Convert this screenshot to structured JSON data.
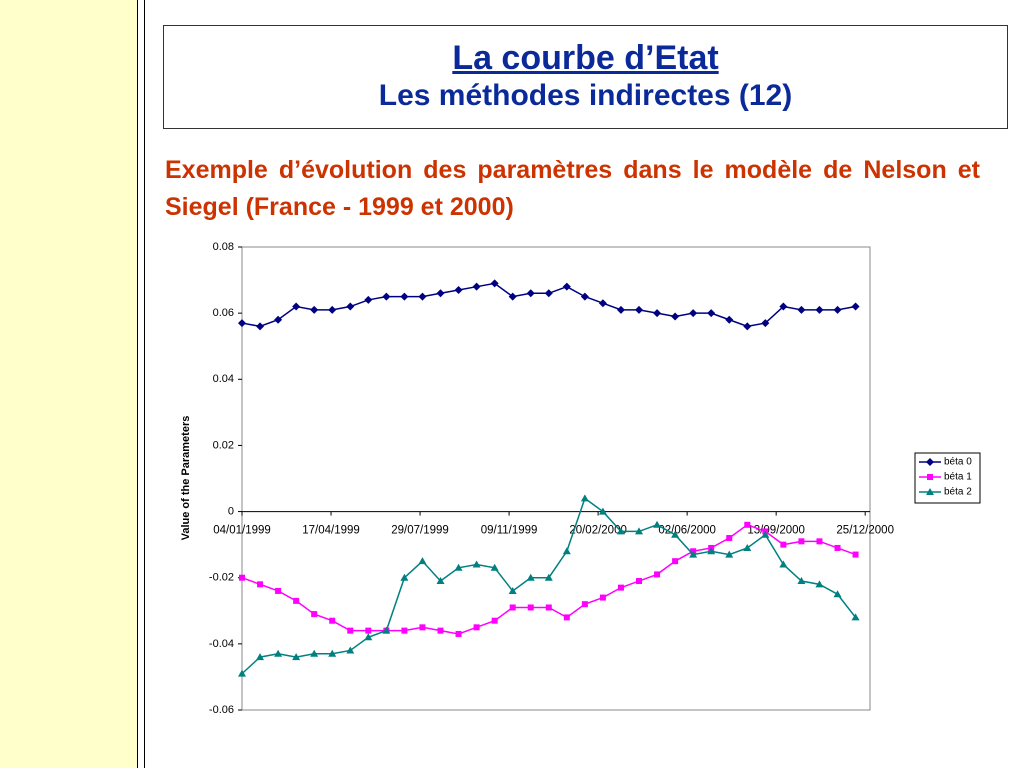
{
  "header": {
    "title": "La courbe d’Etat",
    "subtitle": "Les méthodes indirectes (12)"
  },
  "text": "Exemple d’évolution des paramètres dans le modèle de Nelson et Siegel (France - 1999 et 2000)",
  "chart_data": {
    "type": "line",
    "y_label": "Value of the Parameters",
    "x": [
      0,
      15,
      30,
      45,
      60,
      75,
      90,
      105,
      120,
      135,
      150,
      165,
      180,
      195,
      210,
      225,
      240,
      255,
      270,
      285,
      300,
      315,
      330,
      345,
      360,
      375,
      390,
      405,
      420,
      435,
      450,
      465,
      480,
      495,
      510
    ],
    "xlim": [
      0,
      522
    ],
    "xticks": [
      {
        "value": 0,
        "label": "04/01/1999"
      },
      {
        "value": 74,
        "label": "17/04/1999"
      },
      {
        "value": 148,
        "label": "29/07/1999"
      },
      {
        "value": 222,
        "label": "09/11/1999"
      },
      {
        "value": 296,
        "label": "20/02/2000"
      },
      {
        "value": 370,
        "label": "02/06/2000"
      },
      {
        "value": 444,
        "label": "13/09/2000"
      },
      {
        "value": 518,
        "label": "25/12/2000"
      }
    ],
    "ylim": [
      -0.06,
      0.08
    ],
    "yticks": [
      -0.06,
      -0.04,
      -0.02,
      0,
      0.02,
      0.04,
      0.06,
      0.08
    ],
    "grid": false,
    "legend": "right",
    "series": [
      {
        "name": "béta 0",
        "color": "#000080",
        "marker": "diamond",
        "values": [
          0.057,
          0.056,
          0.058,
          0.062,
          0.061,
          0.061,
          0.062,
          0.064,
          0.065,
          0.065,
          0.065,
          0.066,
          0.067,
          0.068,
          0.069,
          0.065,
          0.066,
          0.066,
          0.068,
          0.065,
          0.063,
          0.061,
          0.061,
          0.06,
          0.059,
          0.06,
          0.06,
          0.058,
          0.056,
          0.057,
          0.062,
          0.061,
          0.061,
          0.061,
          0.062
        ]
      },
      {
        "name": "béta 1",
        "color": "#ff00ff",
        "marker": "square",
        "values": [
          -0.02,
          -0.022,
          -0.024,
          -0.027,
          -0.031,
          -0.033,
          -0.036,
          -0.036,
          -0.036,
          -0.036,
          -0.035,
          -0.036,
          -0.037,
          -0.035,
          -0.033,
          -0.029,
          -0.029,
          -0.029,
          -0.032,
          -0.028,
          -0.026,
          -0.023,
          -0.021,
          -0.019,
          -0.015,
          -0.012,
          -0.011,
          -0.008,
          -0.004,
          -0.006,
          -0.01,
          -0.009,
          -0.009,
          -0.011,
          -0.013
        ]
      },
      {
        "name": "béta 2",
        "color": "#008080",
        "marker": "triangle",
        "values": [
          -0.049,
          -0.044,
          -0.043,
          -0.044,
          -0.043,
          -0.043,
          -0.042,
          -0.038,
          -0.036,
          -0.02,
          -0.015,
          -0.021,
          -0.017,
          -0.016,
          -0.017,
          -0.024,
          -0.02,
          -0.02,
          -0.012,
          0.004,
          0.0,
          -0.006,
          -0.006,
          -0.004,
          -0.007,
          -0.013,
          -0.012,
          -0.013,
          -0.011,
          -0.007,
          -0.016,
          -0.021,
          -0.022,
          -0.025,
          -0.032
        ]
      }
    ]
  }
}
